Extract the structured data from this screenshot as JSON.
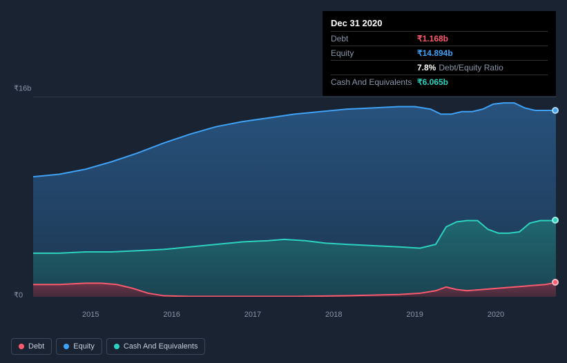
{
  "tooltip": {
    "date": "Dec 31 2020",
    "rows": [
      {
        "label": "Debt",
        "value": "₹1.168b",
        "color": "#ff5a6e"
      },
      {
        "label": "Equity",
        "value": "₹14.894b",
        "color": "#3fa2f7"
      },
      {
        "label": "",
        "value": "7.8%",
        "extra": "Debt/Equity Ratio",
        "color": "#ffffff"
      },
      {
        "label": "Cash And Equivalents",
        "value": "₹6.065b",
        "color": "#2cd4c0"
      }
    ]
  },
  "chart": {
    "type": "area",
    "background_color": "#1a2332",
    "plot_background": "#1a2332",
    "gridline_top_color": "#4a5668",
    "gridline_bottom_color": "#4a5668",
    "y_axis": {
      "min": 0,
      "max": 16,
      "labels": [
        "₹16b",
        "₹0"
      ]
    },
    "x_axis": {
      "labels": [
        "2015",
        "2016",
        "2017",
        "2018",
        "2019",
        "2020"
      ],
      "positions_pct": [
        11,
        26.5,
        42,
        57.5,
        73,
        88.5
      ]
    },
    "series": [
      {
        "name": "Equity",
        "color": "#3fa2f7",
        "fill_top": "#2a5a8a",
        "fill_bottom": "#1d3a56",
        "points": [
          [
            0,
            9.6
          ],
          [
            5,
            9.8
          ],
          [
            10,
            10.2
          ],
          [
            15,
            10.8
          ],
          [
            20,
            11.5
          ],
          [
            25,
            12.3
          ],
          [
            30,
            13.0
          ],
          [
            35,
            13.6
          ],
          [
            40,
            14.0
          ],
          [
            45,
            14.3
          ],
          [
            50,
            14.6
          ],
          [
            55,
            14.8
          ],
          [
            60,
            15.0
          ],
          [
            65,
            15.1
          ],
          [
            70,
            15.2
          ],
          [
            73,
            15.2
          ],
          [
            76,
            15.0
          ],
          [
            78,
            14.6
          ],
          [
            80,
            14.6
          ],
          [
            82,
            14.8
          ],
          [
            84,
            14.8
          ],
          [
            86,
            15.0
          ],
          [
            88,
            15.4
          ],
          [
            90,
            15.5
          ],
          [
            92,
            15.5
          ],
          [
            94,
            15.1
          ],
          [
            96,
            14.9
          ],
          [
            98,
            14.9
          ],
          [
            100,
            14.9
          ]
        ]
      },
      {
        "name": "Cash And Equivalents",
        "color": "#2cd4c0",
        "fill_top": "#1f6e72",
        "fill_bottom": "#1b4552",
        "points": [
          [
            0,
            3.5
          ],
          [
            5,
            3.5
          ],
          [
            10,
            3.6
          ],
          [
            15,
            3.6
          ],
          [
            20,
            3.7
          ],
          [
            25,
            3.8
          ],
          [
            30,
            4.0
          ],
          [
            35,
            4.2
          ],
          [
            40,
            4.4
          ],
          [
            45,
            4.5
          ],
          [
            48,
            4.6
          ],
          [
            52,
            4.5
          ],
          [
            56,
            4.3
          ],
          [
            60,
            4.2
          ],
          [
            65,
            4.1
          ],
          [
            70,
            4.0
          ],
          [
            74,
            3.9
          ],
          [
            77,
            4.2
          ],
          [
            79,
            5.6
          ],
          [
            81,
            6.0
          ],
          [
            83,
            6.1
          ],
          [
            85,
            6.1
          ],
          [
            87,
            5.4
          ],
          [
            89,
            5.1
          ],
          [
            91,
            5.1
          ],
          [
            93,
            5.2
          ],
          [
            95,
            5.9
          ],
          [
            97,
            6.1
          ],
          [
            100,
            6.1
          ]
        ]
      },
      {
        "name": "Debt",
        "color": "#ff5a6e",
        "fill_top": "#7a3246",
        "fill_bottom": "#4a2738",
        "points": [
          [
            0,
            1.0
          ],
          [
            5,
            1.0
          ],
          [
            10,
            1.1
          ],
          [
            13,
            1.1
          ],
          [
            16,
            1.0
          ],
          [
            19,
            0.7
          ],
          [
            22,
            0.3
          ],
          [
            25,
            0.1
          ],
          [
            30,
            0.05
          ],
          [
            40,
            0.05
          ],
          [
            50,
            0.05
          ],
          [
            60,
            0.1
          ],
          [
            65,
            0.15
          ],
          [
            70,
            0.2
          ],
          [
            74,
            0.3
          ],
          [
            77,
            0.5
          ],
          [
            79,
            0.8
          ],
          [
            81,
            0.6
          ],
          [
            83,
            0.5
          ],
          [
            86,
            0.6
          ],
          [
            89,
            0.7
          ],
          [
            92,
            0.8
          ],
          [
            95,
            0.9
          ],
          [
            98,
            1.0
          ],
          [
            100,
            1.15
          ]
        ]
      }
    ]
  },
  "legend": {
    "items": [
      {
        "label": "Debt",
        "color": "#ff5a6e"
      },
      {
        "label": "Equity",
        "color": "#3fa2f7"
      },
      {
        "label": "Cash And Equivalents",
        "color": "#2cd4c0"
      }
    ]
  }
}
